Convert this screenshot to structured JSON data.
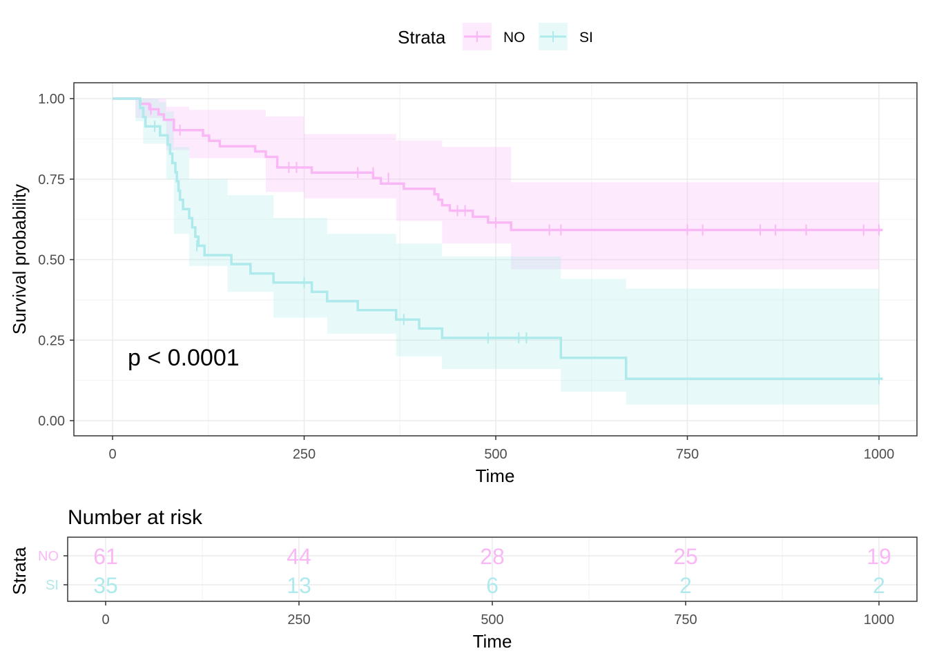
{
  "chart_data": [
    {
      "type": "line",
      "subtype": "kaplan-meier",
      "xlabel": "Time",
      "ylabel": "Survival probability",
      "xlim": [
        0,
        1000
      ],
      "ylim": [
        0,
        1
      ],
      "x_ticks": [
        "0",
        "250",
        "500",
        "750",
        "1000"
      ],
      "y_ticks": [
        "0.00",
        "0.25",
        "0.50",
        "0.75",
        "1.00"
      ],
      "grid": true,
      "legend": {
        "title": "Strata",
        "position": "top"
      },
      "annotation": "p < 0.0001",
      "series": [
        {
          "name": "NO",
          "color": "#f9b8f5",
          "steps": [
            [
              0,
              1.0
            ],
            [
              36,
              0.984
            ],
            [
              48,
              0.967
            ],
            [
              60,
              0.951
            ],
            [
              67,
              0.934
            ],
            [
              80,
              0.902
            ],
            [
              118,
              0.885
            ],
            [
              126,
              0.869
            ],
            [
              140,
              0.852
            ],
            [
              186,
              0.836
            ],
            [
              200,
              0.819
            ],
            [
              215,
              0.786
            ],
            [
              260,
              0.77
            ],
            [
              340,
              0.753
            ],
            [
              350,
              0.736
            ],
            [
              380,
              0.72
            ],
            [
              420,
              0.703
            ],
            [
              425,
              0.686
            ],
            [
              430,
              0.669
            ],
            [
              440,
              0.652
            ],
            [
              470,
              0.633
            ],
            [
              490,
              0.615
            ],
            [
              520,
              0.592
            ],
            [
              1005,
              0.592
            ]
          ],
          "upper": [
            [
              30,
              1.0
            ],
            [
              70,
              0.975
            ],
            [
              100,
              0.965
            ],
            [
              200,
              0.945
            ],
            [
              250,
              0.89
            ],
            [
              370,
              0.87
            ],
            [
              430,
              0.85
            ],
            [
              520,
              0.74
            ],
            [
              1000,
              0.74
            ]
          ],
          "lower": [
            [
              30,
              0.94
            ],
            [
              70,
              0.84
            ],
            [
              100,
              0.815
            ],
            [
              200,
              0.71
            ],
            [
              250,
              0.69
            ],
            [
              370,
              0.62
            ],
            [
              430,
              0.55
            ],
            [
              520,
              0.47
            ],
            [
              1000,
              0.47
            ]
          ],
          "censors": [
            [
              50,
              0.967
            ],
            [
              88,
              0.902
            ],
            [
              230,
              0.786
            ],
            [
              240,
              0.786
            ],
            [
              320,
              0.77
            ],
            [
              340,
              0.77
            ],
            [
              360,
              0.753
            ],
            [
              450,
              0.652
            ],
            [
              460,
              0.652
            ],
            [
              500,
              0.615
            ],
            [
              570,
              0.592
            ],
            [
              585,
              0.592
            ],
            [
              750,
              0.592
            ],
            [
              770,
              0.592
            ],
            [
              845,
              0.592
            ],
            [
              865,
              0.592
            ],
            [
              905,
              0.592
            ],
            [
              980,
              0.592
            ],
            [
              1000,
              0.592
            ]
          ]
        },
        {
          "name": "SI",
          "color": "#aeeaec",
          "steps": [
            [
              0,
              1.0
            ],
            [
              36,
              0.971
            ],
            [
              40,
              0.943
            ],
            [
              43,
              0.914
            ],
            [
              62,
              0.886
            ],
            [
              72,
              0.857
            ],
            [
              75,
              0.829
            ],
            [
              78,
              0.8
            ],
            [
              82,
              0.771
            ],
            [
              84,
              0.743
            ],
            [
              86,
              0.714
            ],
            [
              88,
              0.686
            ],
            [
              92,
              0.657
            ],
            [
              100,
              0.629
            ],
            [
              104,
              0.6
            ],
            [
              108,
              0.571
            ],
            [
              112,
              0.543
            ],
            [
              120,
              0.514
            ],
            [
              155,
              0.486
            ],
            [
              180,
              0.457
            ],
            [
              210,
              0.429
            ],
            [
              260,
              0.4
            ],
            [
              280,
              0.371
            ],
            [
              320,
              0.343
            ],
            [
              370,
              0.314
            ],
            [
              400,
              0.286
            ],
            [
              430,
              0.257
            ],
            [
              585,
              0.195
            ],
            [
              670,
              0.13
            ],
            [
              1005,
              0.13
            ]
          ],
          "upper": [
            [
              30,
              1.0
            ],
            [
              60,
              0.99
            ],
            [
              70,
              0.96
            ],
            [
              80,
              0.85
            ],
            [
              100,
              0.75
            ],
            [
              150,
              0.7
            ],
            [
              210,
              0.63
            ],
            [
              280,
              0.58
            ],
            [
              370,
              0.55
            ],
            [
              430,
              0.51
            ],
            [
              585,
              0.44
            ],
            [
              670,
              0.41
            ],
            [
              1000,
              0.41
            ]
          ],
          "lower": [
            [
              30,
              0.93
            ],
            [
              40,
              0.86
            ],
            [
              70,
              0.75
            ],
            [
              80,
              0.58
            ],
            [
              100,
              0.48
            ],
            [
              150,
              0.4
            ],
            [
              210,
              0.32
            ],
            [
              280,
              0.27
            ],
            [
              370,
              0.2
            ],
            [
              430,
              0.16
            ],
            [
              585,
              0.09
            ],
            [
              670,
              0.05
            ],
            [
              1000,
              0.05
            ]
          ],
          "censors": [
            [
              55,
              0.914
            ],
            [
              110,
              0.543
            ],
            [
              250,
              0.429
            ],
            [
              380,
              0.314
            ],
            [
              490,
              0.257
            ],
            [
              530,
              0.257
            ],
            [
              540,
              0.257
            ],
            [
              1000,
              0.13
            ]
          ]
        }
      ]
    },
    {
      "type": "table",
      "title": "Number at risk",
      "xlabel": "Time",
      "ylabel": "Strata",
      "xlim": [
        0,
        1000
      ],
      "x_ticks": [
        "0",
        "250",
        "500",
        "750",
        "1000"
      ],
      "rows": [
        {
          "name": "NO",
          "color": "#f9b8f5",
          "values": [
            "61",
            "44",
            "28",
            "25",
            "19"
          ]
        },
        {
          "name": "SI",
          "color": "#aeeaec",
          "values": [
            "35",
            "13",
            "6",
            "2",
            "2"
          ]
        }
      ]
    }
  ]
}
